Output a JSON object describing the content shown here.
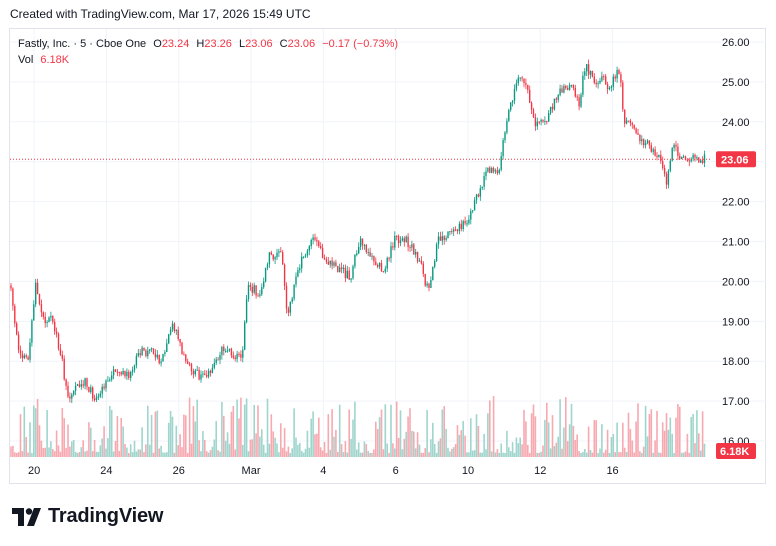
{
  "caption": "Created with TradingView.com, Mar 17, 2026 15:49 UTC",
  "legend": {
    "symbol": "Fastly, Inc. · 5 · Cboe One",
    "open_label": "O",
    "open": "23.24",
    "high_label": "H",
    "high": "23.26",
    "low_label": "L",
    "low": "23.06",
    "close_label": "C",
    "close": "23.06",
    "change": "−0.17 (−0.73%)",
    "vol_label": "Vol",
    "vol": "6.18K"
  },
  "price_badge": "23.06",
  "volume_badge": "6.18K",
  "brand": "TradingView",
  "colors": {
    "up": "#089981",
    "down": "#f23645",
    "up_vol": "#9fd5cc",
    "down_vol": "#f7a9b0",
    "grid": "#f0f3fa",
    "text": "#131722"
  },
  "chart_data": {
    "type": "candlestick",
    "interval": "5",
    "ylim": [
      15.6,
      26.3
    ],
    "yticks": [
      16,
      17,
      18,
      19,
      20,
      21,
      22,
      23,
      24,
      25,
      26
    ],
    "ytick_labels": [
      "16.00",
      "17.00",
      "18.00",
      "19.00",
      "20.00",
      "21.00",
      "22.00",
      "23.00",
      "24.00",
      "25.00",
      "26.00"
    ],
    "xticks": [
      {
        "label": "20",
        "t": 0.8
      },
      {
        "label": "24",
        "t": 3.2
      },
      {
        "label": "26",
        "t": 5.6
      },
      {
        "label": "Mar",
        "t": 8.0
      },
      {
        "label": "4",
        "t": 10.4
      },
      {
        "label": "6",
        "t": 12.8
      },
      {
        "label": "10",
        "t": 15.2
      },
      {
        "label": "12",
        "t": 17.6
      },
      {
        "label": "16",
        "t": 20.0
      }
    ],
    "t_range": [
      0,
      23.3
    ],
    "last_price": 23.06,
    "last_volume": "6.18K",
    "grid": true,
    "path": [
      [
        0.0,
        19.9
      ],
      [
        0.3,
        18.2
      ],
      [
        0.6,
        18.0
      ],
      [
        0.85,
        19.9
      ],
      [
        1.1,
        19.0
      ],
      [
        1.4,
        19.1
      ],
      [
        1.7,
        18.1
      ],
      [
        1.95,
        17.0
      ],
      [
        2.2,
        17.3
      ],
      [
        2.5,
        17.5
      ],
      [
        2.8,
        17.1
      ],
      [
        3.1,
        17.4
      ],
      [
        3.5,
        17.8
      ],
      [
        3.9,
        17.6
      ],
      [
        4.3,
        18.2
      ],
      [
        4.7,
        18.3
      ],
      [
        5.0,
        18.0
      ],
      [
        5.4,
        19.0
      ],
      [
        5.8,
        18.0
      ],
      [
        6.3,
        17.6
      ],
      [
        6.6,
        17.7
      ],
      [
        7.0,
        18.3
      ],
      [
        7.4,
        18.2
      ],
      [
        7.7,
        18.0
      ],
      [
        7.9,
        19.9
      ],
      [
        8.3,
        19.7
      ],
      [
        8.6,
        20.6
      ],
      [
        9.0,
        20.8
      ],
      [
        9.2,
        19.0
      ],
      [
        9.5,
        20.2
      ],
      [
        9.9,
        20.9
      ],
      [
        10.1,
        21.0
      ],
      [
        10.4,
        20.6
      ],
      [
        10.8,
        20.4
      ],
      [
        11.3,
        20.1
      ],
      [
        11.6,
        21.0
      ],
      [
        12.0,
        20.6
      ],
      [
        12.4,
        20.3
      ],
      [
        12.8,
        21.1
      ],
      [
        13.2,
        21.0
      ],
      [
        13.6,
        20.5
      ],
      [
        13.9,
        19.7
      ],
      [
        14.2,
        21.0
      ],
      [
        14.6,
        21.2
      ],
      [
        14.9,
        21.4
      ],
      [
        15.2,
        21.5
      ],
      [
        15.6,
        22.3
      ],
      [
        15.9,
        22.8
      ],
      [
        16.2,
        22.7
      ],
      [
        16.5,
        24.0
      ],
      [
        16.8,
        25.0
      ],
      [
        17.1,
        25.0
      ],
      [
        17.4,
        24.0
      ],
      [
        17.8,
        24.0
      ],
      [
        18.2,
        24.8
      ],
      [
        18.6,
        24.9
      ],
      [
        18.9,
        24.4
      ],
      [
        19.1,
        25.5
      ],
      [
        19.4,
        24.9
      ],
      [
        19.7,
        25.2
      ],
      [
        19.9,
        24.8
      ],
      [
        20.2,
        25.4
      ],
      [
        20.4,
        24.0
      ],
      [
        20.8,
        23.7
      ],
      [
        21.2,
        23.4
      ],
      [
        21.6,
        23.1
      ],
      [
        21.8,
        22.5
      ],
      [
        22.0,
        23.4
      ],
      [
        22.3,
        23.06
      ]
    ]
  }
}
